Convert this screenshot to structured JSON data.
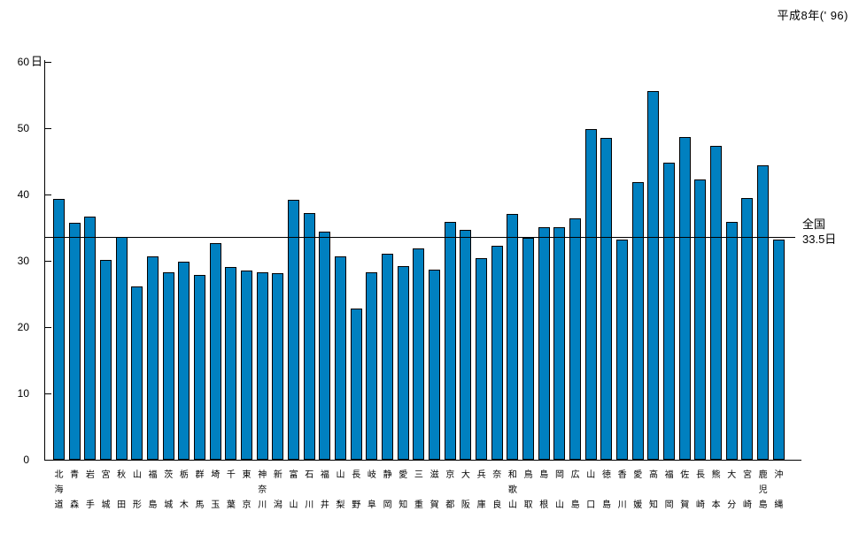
{
  "chart_data": {
    "type": "bar",
    "title": "平成8年(' 96)",
    "y_unit": "日",
    "ylim": [
      0,
      60
    ],
    "yticks": [
      0,
      10,
      20,
      30,
      40,
      50,
      60
    ],
    "grid": false,
    "legend": false,
    "bar_color": "#0080c0",
    "bar_border_color": "#000000",
    "reference_line": {
      "value": 33.5,
      "label_lines": [
        "全国",
        "33.5日"
      ]
    },
    "categories": [
      "北海道",
      "青森",
      "岩手",
      "宮城",
      "秋田",
      "山形",
      "福島",
      "茨城",
      "栃木",
      "群馬",
      "埼玉",
      "千葉",
      "東京",
      "神奈川",
      "新潟",
      "富山",
      "石川",
      "福井",
      "山梨",
      "長野",
      "岐阜",
      "静岡",
      "愛知",
      "三重",
      "滋賀",
      "京都",
      "大阪",
      "兵庫",
      "奈良",
      "和歌山",
      "鳥取",
      "島根",
      "岡山",
      "広島",
      "山口",
      "徳島",
      "香川",
      "愛媛",
      "高知",
      "福岡",
      "佐賀",
      "長崎",
      "熊本",
      "大分",
      "宮崎",
      "鹿児島",
      "沖縄"
    ],
    "values": [
      39.3,
      35.7,
      36.7,
      30.1,
      33.6,
      26.1,
      30.7,
      28.2,
      29.8,
      27.8,
      32.7,
      29.0,
      28.5,
      28.3,
      28.1,
      39.2,
      37.2,
      34.4,
      30.7,
      22.8,
      28.2,
      31.0,
      29.2,
      31.8,
      28.6,
      35.9,
      34.6,
      30.4,
      32.3,
      37.0,
      33.4,
      35.1,
      35.0,
      36.4,
      49.8,
      48.5,
      33.2,
      41.8,
      55.6,
      44.8,
      48.6,
      42.2,
      47.3,
      35.8,
      39.4,
      44.4,
      33.2
    ]
  }
}
